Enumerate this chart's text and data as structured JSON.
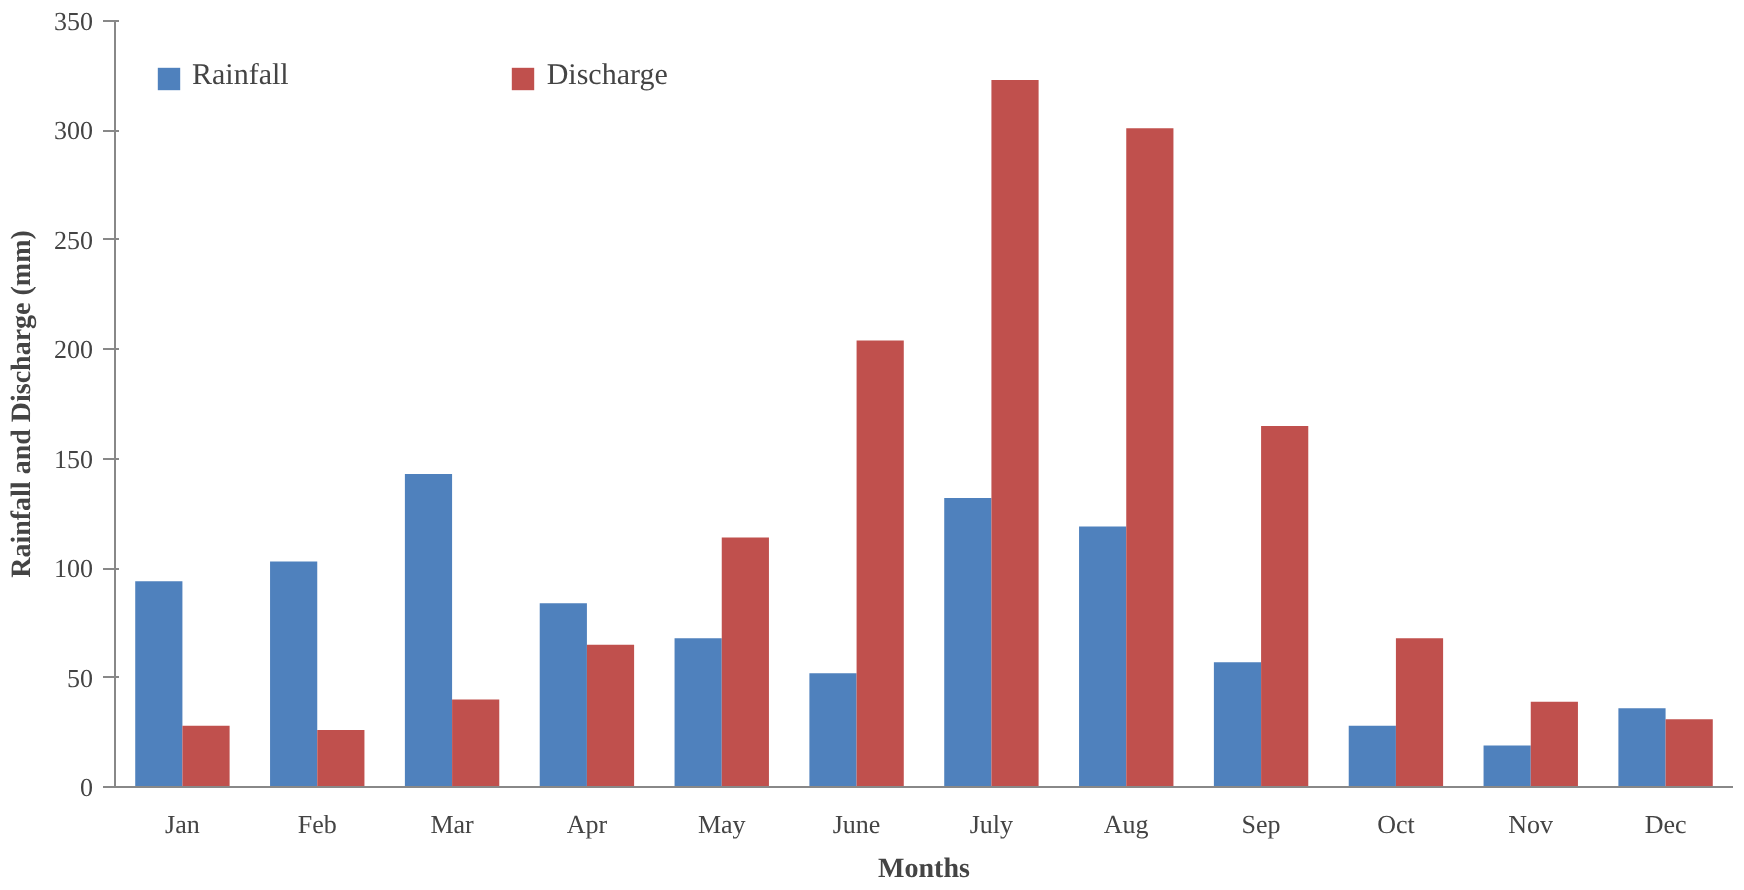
{
  "chart_data": {
    "type": "bar",
    "xlabel": "Months",
    "ylabel": "Rainfall and Discharge (mm)",
    "categories": [
      "Jan",
      "Feb",
      "Mar",
      "Apr",
      "May",
      "June",
      "July",
      "Aug",
      "Sep",
      "Oct",
      "Nov",
      "Dec"
    ],
    "series": [
      {
        "name": "Rainfall",
        "color": "#4f81bd",
        "values": [
          94,
          103,
          143,
          84,
          68,
          52,
          132,
          119,
          57,
          28,
          19,
          36
        ]
      },
      {
        "name": "Discharge",
        "color": "#c0504d",
        "values": [
          28,
          26,
          40,
          65,
          114,
          204,
          323,
          301,
          165,
          68,
          39,
          31
        ]
      }
    ],
    "ylim": [
      0,
      350
    ],
    "yticks": [
      0,
      50,
      100,
      150,
      200,
      250,
      300,
      350
    ],
    "grid": false,
    "legend": "top left"
  }
}
